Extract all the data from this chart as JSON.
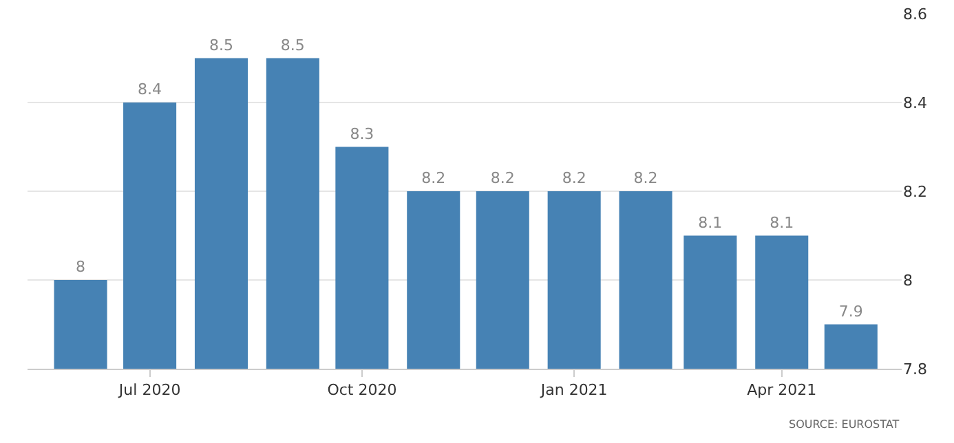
{
  "chart_data": {
    "type": "bar",
    "x": [
      "2020-06",
      "2020-07",
      "2020-08",
      "2020-09",
      "2020-10",
      "2020-11",
      "2020-12",
      "2021-01",
      "2021-02",
      "2021-03",
      "2021-04",
      "2021-05"
    ],
    "values": [
      8,
      8.4,
      8.5,
      8.5,
      8.3,
      8.2,
      8.2,
      8.2,
      8.2,
      8.1,
      8.1,
      7.9
    ],
    "color": "#4682b4",
    "xlim": [
      "2020-05-09",
      "2021-05-23"
    ],
    "xticks": [
      {
        "value": "2020-07",
        "label": "Jul 2020"
      },
      {
        "value": "2020-10",
        "label": "Oct 2020"
      },
      {
        "value": "2021-01",
        "label": "Jan 2021"
      },
      {
        "value": "2021-04",
        "label": "Apr 2021"
      }
    ],
    "ylim": [
      7.8,
      8.6
    ],
    "yticks": [
      7.8,
      8,
      8.2,
      8.4,
      8.6
    ],
    "grid": "y",
    "data_labels": true,
    "annotations": [
      "SOURCE: EUROSTAT"
    ]
  }
}
